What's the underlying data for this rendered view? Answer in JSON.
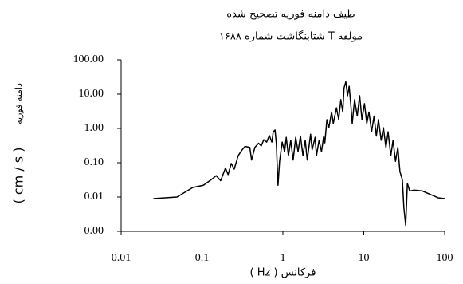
{
  "chart_data": {
    "type": "line",
    "title": "طیف دامنه فوریه تصحیح شده",
    "subtitle": "مولفه T شتابنگاشت شماره ۱۶۸۸",
    "xlabel": "فرکانس ( Hz )",
    "ylabel": "دامنه فوریه",
    "ylabel_unit": "( cm / s )",
    "xscale": "log",
    "yscale": "log",
    "grid": false,
    "xlim": [
      0.01,
      100
    ],
    "xticks": [
      0.01,
      0.1,
      1,
      10,
      100
    ],
    "ylim": [
      0.001,
      100
    ],
    "yticks": [
      {
        "value": 0.001,
        "label": "0.00"
      },
      {
        "value": 0.01,
        "label": "0.01"
      },
      {
        "value": 0.1,
        "label": "0.10"
      },
      {
        "value": 1,
        "label": "1.00"
      },
      {
        "value": 10,
        "label": "10.00"
      },
      {
        "value": 100,
        "label": "100.00"
      }
    ],
    "x": [
      0.025,
      0.049,
      0.077,
      0.104,
      0.13,
      0.15,
      0.17,
      0.195,
      0.21,
      0.23,
      0.25,
      0.28,
      0.31,
      0.34,
      0.39,
      0.41,
      0.45,
      0.5,
      0.54,
      0.58,
      0.63,
      0.68,
      0.73,
      0.76,
      0.8,
      0.83,
      0.87,
      0.91,
      0.98,
      1.05,
      1.1,
      1.17,
      1.25,
      1.34,
      1.44,
      1.54,
      1.65,
      1.77,
      1.89,
      2.0,
      2.2,
      2.3,
      2.5,
      2.6,
      2.8,
      3.0,
      3.2,
      3.3,
      3.5,
      3.7,
      4.0,
      4.2,
      4.6,
      4.9,
      5.2,
      5.5,
      5.7,
      6.0,
      6.3,
      6.6,
      6.9,
      7.2,
      7.7,
      8.3,
      8.9,
      9.5,
      10.2,
      10.9,
      11.6,
      12.5,
      13.4,
      14.3,
      15.2,
      16.4,
      17.5,
      18.8,
      20,
      21.6,
      23,
      24.7,
      26.4,
      28,
      30,
      31.3,
      33,
      34.6,
      37,
      42,
      53,
      66,
      83,
      100
    ],
    "series": [
      {
        "name": "T",
        "color": "#000000",
        "values": [
          0.009,
          0.01,
          0.019,
          0.022,
          0.032,
          0.042,
          0.03,
          0.07,
          0.045,
          0.095,
          0.065,
          0.16,
          0.23,
          0.3,
          0.28,
          0.12,
          0.28,
          0.37,
          0.31,
          0.47,
          0.4,
          0.62,
          0.4,
          0.8,
          0.9,
          0.36,
          0.022,
          0.11,
          0.4,
          0.21,
          0.55,
          0.16,
          0.45,
          0.12,
          0.55,
          0.21,
          0.6,
          0.16,
          0.45,
          0.12,
          0.68,
          0.24,
          0.55,
          0.16,
          0.45,
          0.21,
          0.6,
          0.38,
          1.8,
          1.05,
          3.0,
          1.4,
          4.0,
          1.8,
          6.9,
          3.0,
          15,
          23,
          9,
          17,
          5.3,
          1.4,
          6.9,
          2.3,
          9,
          1.8,
          5.3,
          1.4,
          3.0,
          0.8,
          2.3,
          0.6,
          1.8,
          0.45,
          1.05,
          0.28,
          0.8,
          0.16,
          0.45,
          0.11,
          0.28,
          0.055,
          0.032,
          0.005,
          0.0015,
          0.025,
          0.015,
          0.016,
          0.015,
          0.012,
          0.0095,
          0.009
        ]
      }
    ]
  }
}
